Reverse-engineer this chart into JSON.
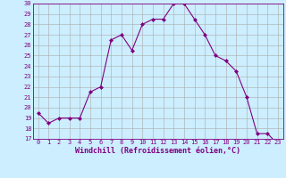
{
  "x": [
    0,
    1,
    2,
    3,
    4,
    5,
    6,
    7,
    8,
    9,
    10,
    11,
    12,
    13,
    14,
    15,
    16,
    17,
    18,
    19,
    20,
    21,
    22,
    23
  ],
  "y": [
    19.5,
    18.5,
    19.0,
    19.0,
    19.0,
    21.5,
    22.0,
    26.5,
    27.0,
    25.5,
    28.0,
    28.5,
    28.5,
    30.0,
    30.0,
    28.5,
    27.0,
    25.0,
    24.5,
    23.5,
    21.0,
    17.5,
    17.5,
    16.5
  ],
  "line_color": "#800080",
  "marker": "D",
  "marker_size": 2.0,
  "bg_color": "#cceeff",
  "grid_color": "#aaaaaa",
  "xlabel": "Windchill (Refroidissement éolien,°C)",
  "xlabel_color": "#800080",
  "tick_color": "#800080",
  "ylim": [
    17,
    30
  ],
  "xlim": [
    -0.5,
    23.5
  ],
  "yticks": [
    17,
    18,
    19,
    20,
    21,
    22,
    23,
    24,
    25,
    26,
    27,
    28,
    29,
    30
  ],
  "xticks": [
    0,
    1,
    2,
    3,
    4,
    5,
    6,
    7,
    8,
    9,
    10,
    11,
    12,
    13,
    14,
    15,
    16,
    17,
    18,
    19,
    20,
    21,
    22,
    23
  ]
}
